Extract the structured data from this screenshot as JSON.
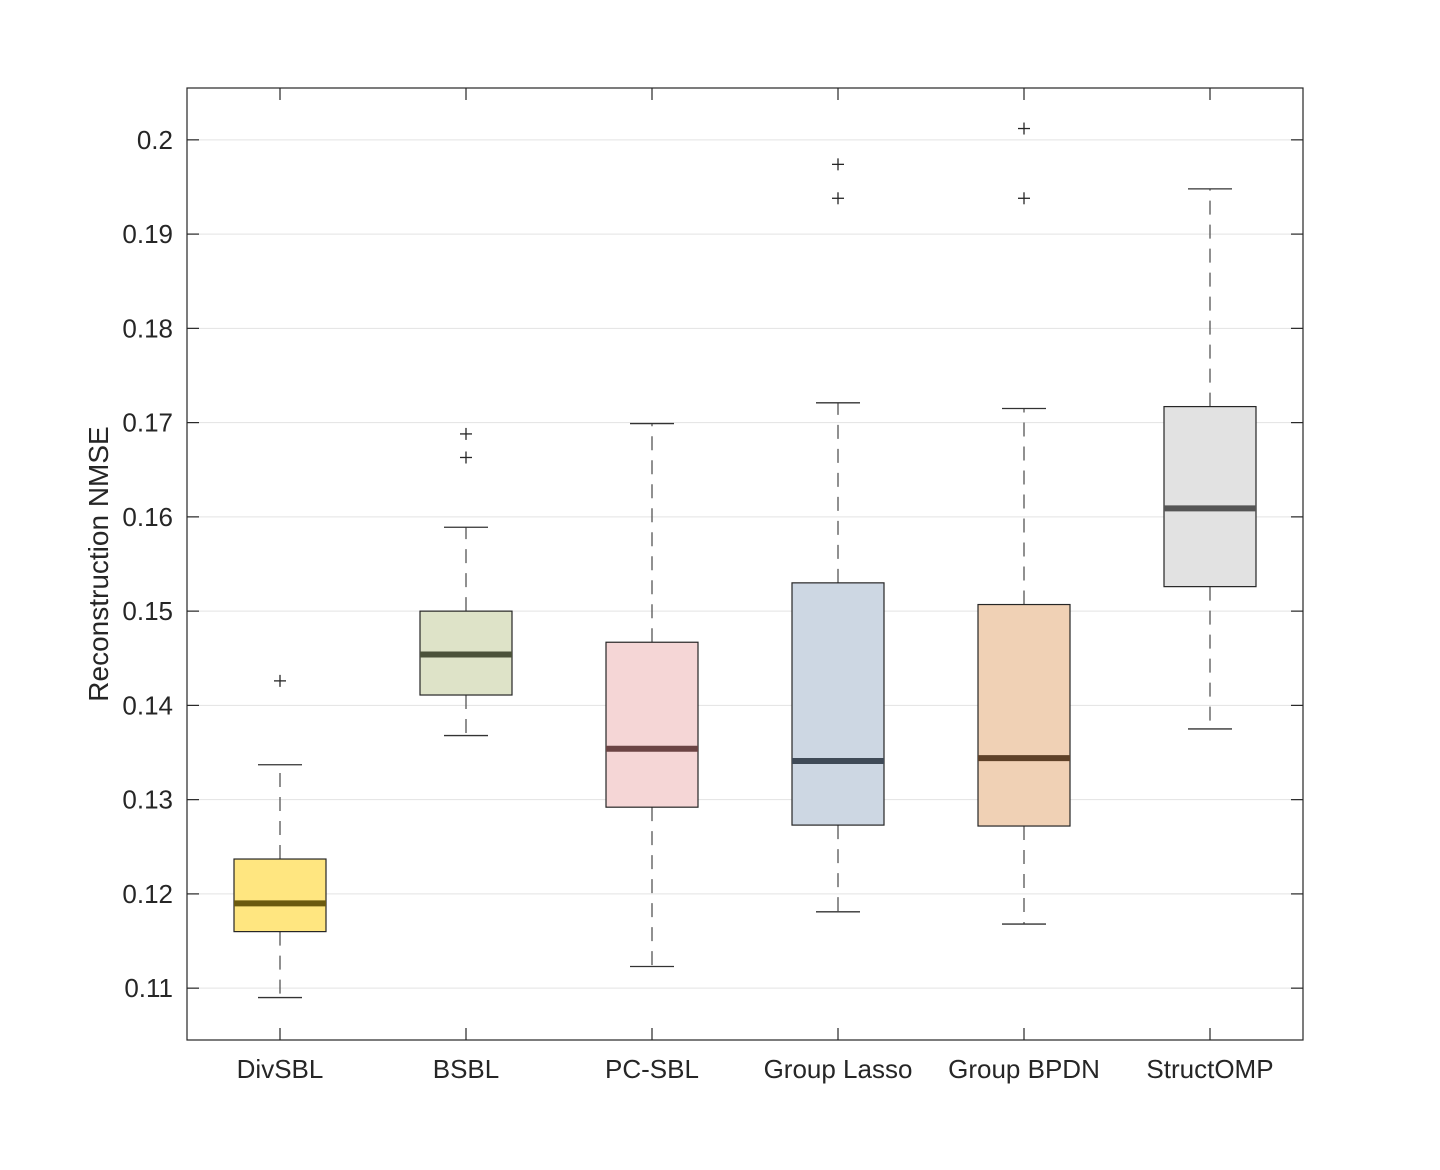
{
  "chart_data": {
    "type": "boxplot",
    "title": "",
    "xlabel": "",
    "ylabel": "Reconstruction NMSE",
    "ylim": [
      0.1045,
      0.2055
    ],
    "yticks": [
      0.11,
      0.12,
      0.13,
      0.14,
      0.15,
      0.16,
      0.17,
      0.18,
      0.19,
      0.2
    ],
    "ytick_labels": [
      "0.11",
      "0.12",
      "0.13",
      "0.14",
      "0.15",
      "0.16",
      "0.17",
      "0.18",
      "0.19",
      "0.2"
    ],
    "grid": "horizontal",
    "categories": [
      "DivSBL",
      "BSBL",
      "PC-SBL",
      "Group Lasso",
      "Group BPDN",
      "StructOMP"
    ],
    "boxes": [
      {
        "name": "DivSBL",
        "whisker_low": 0.109,
        "q1": 0.116,
        "median": 0.119,
        "q3": 0.1237,
        "whisker_high": 0.1337,
        "outliers": [
          0.1426
        ],
        "fill": "#FFE680",
        "median_color": "#6B5A0E"
      },
      {
        "name": "BSBL",
        "whisker_low": 0.1368,
        "q1": 0.1411,
        "median": 0.1454,
        "q3": 0.15,
        "whisker_high": 0.1589,
        "outliers": [
          0.1663,
          0.1688
        ],
        "fill": "#DEE3C8",
        "median_color": "#4B523A"
      },
      {
        "name": "PC-SBL",
        "whisker_low": 0.1123,
        "q1": 0.1292,
        "median": 0.1354,
        "q3": 0.1467,
        "whisker_high": 0.1699,
        "outliers": [],
        "fill": "#F5D6D6",
        "median_color": "#6B4444"
      },
      {
        "name": "Group Lasso",
        "whisker_low": 0.1181,
        "q1": 0.1273,
        "median": 0.1341,
        "q3": 0.153,
        "whisker_high": 0.1721,
        "outliers": [
          0.1938,
          0.1974
        ],
        "fill": "#CDD7E3",
        "median_color": "#3F4A57"
      },
      {
        "name": "Group BPDN",
        "whisker_low": 0.1168,
        "q1": 0.1272,
        "median": 0.1344,
        "q3": 0.1507,
        "whisker_high": 0.1715,
        "outliers": [
          0.1938,
          0.2012
        ],
        "fill": "#F0D1B5",
        "median_color": "#5E4128"
      },
      {
        "name": "StructOMP",
        "whisker_low": 0.1375,
        "q1": 0.1526,
        "median": 0.1609,
        "q3": 0.1717,
        "whisker_high": 0.1948,
        "outliers": [],
        "fill": "#E2E2E2",
        "median_color": "#555555"
      }
    ]
  }
}
